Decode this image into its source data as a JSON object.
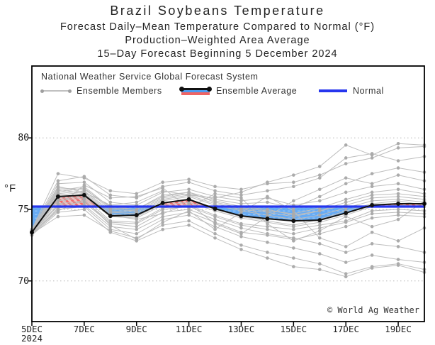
{
  "titles": {
    "line1": "Brazil Soybeans Temperature",
    "line2": "Forecast Daily–Mean Temperature Compared to Normal (°F)",
    "line3": "Production–Weighted Area Average",
    "line4": "15–Day Forecast Beginning 5 December 2024"
  },
  "legend": {
    "header": "National Weather Service Global Forecast System",
    "members_label": "Ensemble Members",
    "average_label": "Ensemble Average",
    "normal_label": "Normal"
  },
  "watermark": "© World Ag Weather",
  "chart_data": {
    "type": "line",
    "title": "Brazil Soybeans Temperature",
    "ylabel": "°F",
    "grid": true,
    "y_ticks": [
      70,
      75,
      80
    ],
    "ylim": [
      67.2,
      85.0
    ],
    "x_days_total": 15,
    "x_tick_days": [
      0,
      2,
      4,
      6,
      8,
      10,
      12,
      14
    ],
    "x_tick_labels": [
      "5DEC",
      "7DEC",
      "9DEC",
      "11DEC",
      "13DEC",
      "15DEC",
      "17DEC",
      "19DEC"
    ],
    "x_start_sublabel": "2024",
    "normal_value": 75.2,
    "series": [
      {
        "name": "Ensemble Average",
        "values": [
          73.4,
          75.9,
          76.0,
          74.55,
          74.6,
          75.45,
          75.7,
          75.05,
          74.55,
          74.35,
          74.2,
          74.25,
          74.75,
          75.3,
          75.4,
          75.4
        ]
      },
      {
        "name": "Normal",
        "values": [
          75.2,
          75.2,
          75.2,
          75.2,
          75.2,
          75.2,
          75.2,
          75.2,
          75.2,
          75.2,
          75.2,
          75.2,
          75.2,
          75.2,
          75.2,
          75.2
        ]
      }
    ],
    "ensemble_members": [
      [
        73.4,
        76.2,
        76.5,
        75.0,
        74.9,
        75.8,
        76.1,
        75.6,
        75.2,
        75.0,
        74.6,
        74.9,
        75.3,
        75.8,
        75.9,
        75.7
      ],
      [
        73.3,
        75.6,
        75.8,
        74.2,
        74.1,
        75.1,
        75.3,
        74.6,
        74.0,
        73.8,
        73.6,
        73.9,
        74.2,
        74.9,
        75.0,
        74.9
      ],
      [
        73.5,
        76.8,
        76.9,
        75.5,
        75.3,
        76.2,
        76.4,
        75.9,
        75.6,
        75.8,
        75.3,
        75.6,
        76.2,
        76.6,
        76.8,
        76.4
      ],
      [
        73.2,
        75.1,
        75.3,
        73.8,
        73.6,
        74.5,
        74.8,
        74.1,
        73.4,
        73.2,
        72.9,
        73.3,
        73.8,
        74.4,
        74.6,
        74.5
      ],
      [
        73.6,
        77.5,
        77.2,
        76.3,
        76.1,
        76.9,
        77.1,
        76.6,
        76.4,
        76.8,
        76.9,
        77.4,
        78.2,
        78.6,
        79.3,
        79.4
      ],
      [
        73.3,
        74.5,
        74.6,
        73.5,
        73.0,
        73.9,
        74.2,
        73.3,
        72.5,
        72.0,
        71.6,
        71.2,
        70.5,
        71.0,
        71.2,
        70.8
      ],
      [
        73.4,
        76.0,
        76.2,
        74.8,
        74.7,
        75.6,
        75.9,
        75.3,
        74.9,
        74.6,
        74.3,
        74.6,
        75.1,
        75.6,
        75.7,
        75.5
      ],
      [
        73.5,
        76.5,
        76.4,
        75.2,
        75.0,
        76.0,
        76.2,
        75.7,
        75.4,
        75.5,
        75.1,
        75.9,
        76.8,
        77.5,
        77.9,
        77.6
      ],
      [
        73.2,
        75.3,
        75.5,
        74.0,
        73.8,
        74.8,
        75.0,
        74.3,
        73.7,
        73.3,
        73.0,
        72.6,
        72.0,
        72.6,
        72.4,
        72.0
      ],
      [
        73.4,
        75.8,
        76.1,
        74.7,
        74.5,
        75.4,
        75.7,
        75.0,
        74.5,
        74.2,
        73.9,
        74.3,
        74.9,
        75.4,
        75.6,
        75.3
      ],
      [
        73.6,
        77.0,
        77.3,
        76.0,
        75.8,
        76.6,
        76.9,
        76.3,
        76.0,
        76.3,
        76.6,
        77.2,
        78.6,
        78.9,
        78.4,
        78.7
      ],
      [
        73.3,
        75.0,
        75.2,
        73.6,
        73.3,
        74.3,
        74.6,
        73.8,
        73.1,
        72.7,
        72.3,
        71.9,
        71.3,
        71.8,
        71.5,
        71.3
      ],
      [
        73.4,
        76.3,
        76.6,
        75.1,
        75.0,
        75.9,
        76.2,
        75.5,
        75.1,
        74.9,
        74.7,
        75.1,
        75.7,
        76.2,
        76.4,
        76.1
      ],
      [
        73.5,
        76.6,
        76.2,
        75.3,
        75.5,
        76.3,
        76.0,
        75.8,
        76.2,
        76.9,
        77.4,
        78.0,
        79.5,
        78.8,
        79.6,
        79.5
      ],
      [
        73.2,
        74.8,
        75.0,
        73.4,
        72.8,
        73.6,
        73.9,
        73.0,
        72.2,
        71.6,
        71.0,
        70.8,
        70.3,
        70.9,
        71.1,
        70.6
      ],
      [
        73.4,
        75.7,
        75.9,
        74.5,
        74.4,
        75.3,
        75.5,
        74.9,
        74.4,
        74.1,
        73.8,
        74.1,
        74.6,
        75.2,
        75.3,
        75.2
      ],
      [
        73.5,
        76.1,
        76.3,
        74.9,
        74.8,
        75.7,
        76.0,
        75.4,
        75.0,
        74.8,
        74.5,
        74.9,
        75.5,
        76.0,
        76.1,
        75.9
      ],
      [
        73.3,
        75.4,
        75.6,
        74.1,
        74.0,
        75.0,
        75.2,
        74.5,
        73.9,
        73.6,
        73.3,
        73.7,
        74.1,
        74.7,
        74.8,
        74.7
      ],
      [
        73.4,
        76.4,
        76.1,
        74.6,
        74.3,
        74.7,
        75.4,
        74.0,
        73.3,
        74.5,
        75.6,
        76.4,
        77.2,
        76.8,
        77.4,
        77.0
      ],
      [
        73.5,
        75.2,
        76.7,
        75.8,
        75.9,
        76.5,
        75.1,
        76.1,
        75.8,
        74.0,
        72.8,
        73.5,
        74.5,
        73.8,
        74.3,
        75.6
      ],
      [
        73.3,
        74.9,
        75.7,
        73.9,
        72.9,
        74.1,
        74.9,
        73.6,
        74.8,
        75.9,
        74.9,
        73.0,
        72.4,
        73.4,
        72.8,
        73.7
      ]
    ],
    "colors": {
      "member_line": "#bdbdbd",
      "member_dot": "#ababab",
      "average_line": "#111111",
      "normal_line": "#2636ee",
      "above_normal_fill": "#ef6464",
      "above_normal_bg": "#f6b3b3",
      "below_normal_fill": "#4d9df2",
      "below_normal_bg": "#8ec3f7",
      "grid_line": "#b5b5b5",
      "frame": "#000000"
    },
    "legend_position": "top-left-inside"
  }
}
